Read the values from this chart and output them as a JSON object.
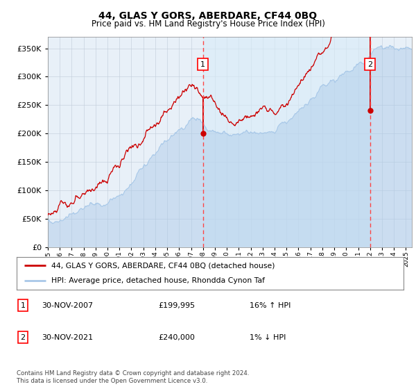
{
  "title": "44, GLAS Y GORS, ABERDARE, CF44 0BQ",
  "subtitle": "Price paid vs. HM Land Registry's House Price Index (HPI)",
  "legend_line1": "44, GLAS Y GORS, ABERDARE, CF44 0BQ (detached house)",
  "legend_line2": "HPI: Average price, detached house, Rhondda Cynon Taf",
  "annotation1_date": "30-NOV-2007",
  "annotation1_price": "£199,995",
  "annotation1_hpi": "16% ↑ HPI",
  "annotation2_date": "30-NOV-2021",
  "annotation2_price": "£240,000",
  "annotation2_hpi": "1% ↓ HPI",
  "footer": "Contains HM Land Registry data © Crown copyright and database right 2024.\nThis data is licensed under the Open Government Licence v3.0.",
  "vline1_x": 2008.0,
  "vline2_x": 2022.0,
  "sale1_x": 2008.0,
  "sale1_y": 199995,
  "sale2_x": 2022.0,
  "sale2_y": 240000,
  "hpi_color": "#a8c8e8",
  "hpi_fill_color": "#d0e8f8",
  "price_color": "#cc0000",
  "vline_color": "#ff4444",
  "plot_bg": "#e8f0f8",
  "ylim_min": 0,
  "ylim_max": 370000,
  "yticks": [
    0,
    50000,
    100000,
    150000,
    200000,
    250000,
    300000,
    350000
  ],
  "xmin": 1995,
  "xmax": 2025.5
}
